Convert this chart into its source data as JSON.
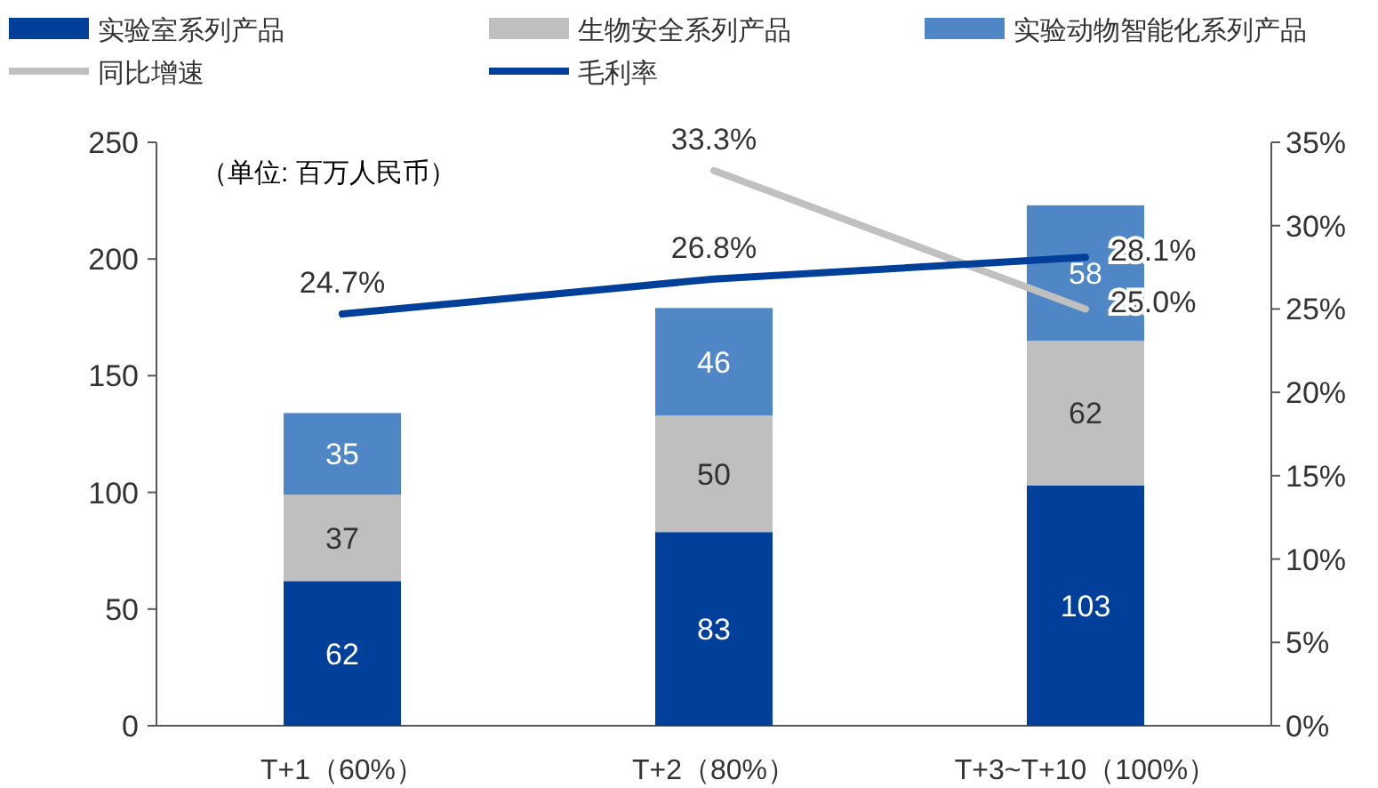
{
  "chart_data": {
    "type": "bar",
    "stacked": true,
    "categories": [
      "T+1（60%）",
      "T+2（80%）",
      "T+3~T+10（100%）"
    ],
    "series": [
      {
        "name": "实验室系列产品",
        "color": "#003f9a",
        "values": [
          62,
          83,
          103
        ],
        "value_labels": [
          "62",
          "83",
          "103"
        ]
      },
      {
        "name": "生物安全系列产品",
        "color": "#bfbfbf",
        "values": [
          37,
          50,
          62
        ],
        "value_labels": [
          "37",
          "50",
          "62"
        ]
      },
      {
        "name": "实验动物智能化系列产品",
        "color": "#4f86c6",
        "values": [
          35,
          46,
          58
        ],
        "value_labels": [
          "35",
          "46",
          "58"
        ]
      },
      {
        "name": "同比增速",
        "type": "line",
        "axis": "y2",
        "color": "#c0c0c0",
        "values": [
          null,
          33.3,
          25.0
        ],
        "value_labels": [
          null,
          "33.3%",
          "25.0%"
        ]
      },
      {
        "name": "毛利率",
        "type": "line",
        "axis": "y2",
        "color": "#003f9a",
        "values": [
          24.7,
          26.8,
          28.1
        ],
        "value_labels": [
          "24.7%",
          "26.8%",
          "28.1%"
        ]
      }
    ],
    "ylim": [
      0,
      250
    ],
    "yticks": [
      0,
      50,
      100,
      150,
      200,
      250
    ],
    "y2lim": [
      0,
      35
    ],
    "y2ticks": [
      {
        "value": 0,
        "label": "0%"
      },
      {
        "value": 5,
        "label": "5%"
      },
      {
        "value": 10,
        "label": "10%"
      },
      {
        "value": 15,
        "label": "15%"
      },
      {
        "value": 20,
        "label": "20%"
      },
      {
        "value": 25,
        "label": "25%"
      },
      {
        "value": 30,
        "label": "30%"
      },
      {
        "value": 35,
        "label": "35%"
      }
    ],
    "annotations": [
      "（单位: 百万人民币）"
    ],
    "legend": "top",
    "grid": false
  }
}
